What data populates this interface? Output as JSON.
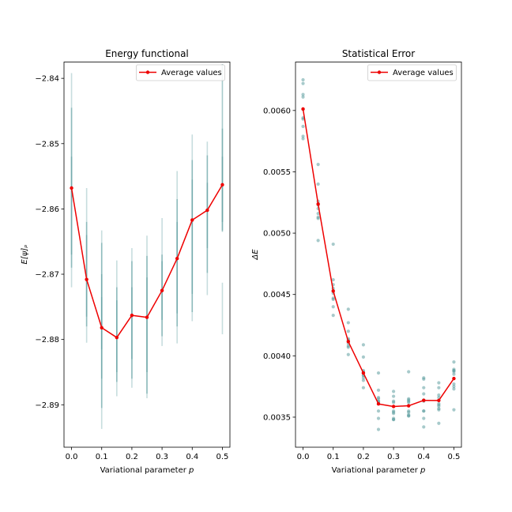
{
  "chart_data": [
    {
      "type": "errorbar-line",
      "title": "Energy functional",
      "xlabel": "Variational parameter p",
      "xlabel_parts": {
        "text": "Variational parameter ",
        "var": "p"
      },
      "ylabel": "E[ψ]ₚ",
      "xlim": [
        -0.025,
        0.525
      ],
      "ylim": [
        -2.8965,
        -2.8375
      ],
      "xticks": [
        0.0,
        0.1,
        0.2,
        0.3,
        0.4,
        0.5
      ],
      "xtick_labels": [
        "0.0",
        "0.1",
        "0.2",
        "0.3",
        "0.4",
        "0.5"
      ],
      "yticks": [
        -2.89,
        -2.88,
        -2.87,
        -2.86,
        -2.85,
        -2.84
      ],
      "ytick_labels": [
        "−2.89",
        "−2.88",
        "−2.87",
        "−2.86",
        "−2.85",
        "−2.84"
      ],
      "legend": {
        "label": "Average values",
        "position": "upper right"
      },
      "colors": {
        "line": "#ee0000",
        "errorbar": "#5f9ea0"
      },
      "series": [
        {
          "name": "Average values",
          "x": [
            0.0,
            0.05,
            0.1,
            0.15,
            0.2,
            0.25,
            0.3,
            0.35,
            0.4,
            0.45,
            0.5
          ],
          "y": [
            -2.8568,
            -2.8708,
            -2.8782,
            -2.8797,
            -2.8763,
            -2.8766,
            -2.8725,
            -2.8676,
            -2.8617,
            -2.8602,
            -2.8563
          ]
        }
      ],
      "errorbars": [
        {
          "x": 0.0,
          "ranges": [
            [
              -2.872,
              -2.8392
            ],
            [
              -2.867,
              -2.8445
            ],
            [
              -2.869,
              -2.852
            ]
          ]
        },
        {
          "x": 0.05,
          "ranges": [
            [
              -2.8805,
              -2.8568
            ],
            [
              -2.878,
              -2.862
            ],
            [
              -2.8765,
              -2.864
            ]
          ]
        },
        {
          "x": 0.1,
          "ranges": [
            [
              -2.8937,
              -2.8633
            ],
            [
              -2.8905,
              -2.8652
            ],
            [
              -2.886,
              -2.87
            ],
            [
              -2.8815,
              -2.8735
            ]
          ]
        },
        {
          "x": 0.15,
          "ranges": [
            [
              -2.8887,
              -2.8679
            ],
            [
              -2.8865,
              -2.872
            ],
            [
              -2.885,
              -2.874
            ]
          ]
        },
        {
          "x": 0.2,
          "ranges": [
            [
              -2.8874,
              -2.866
            ],
            [
              -2.886,
              -2.868
            ],
            [
              -2.883,
              -2.872
            ]
          ]
        },
        {
          "x": 0.25,
          "ranges": [
            [
              -2.889,
              -2.8641
            ],
            [
              -2.8883,
              -2.8672
            ],
            [
              -2.885,
              -2.8705
            ]
          ]
        },
        {
          "x": 0.3,
          "ranges": [
            [
              -2.881,
              -2.8614
            ],
            [
              -2.8795,
              -2.868
            ],
            [
              -2.877,
              -2.867
            ]
          ]
        },
        {
          "x": 0.35,
          "ranges": [
            [
              -2.8806,
              -2.8542
            ],
            [
              -2.878,
              -2.8585
            ],
            [
              -2.876,
              -2.862
            ]
          ]
        },
        {
          "x": 0.4,
          "ranges": [
            [
              -2.8772,
              -2.8486
            ],
            [
              -2.8758,
              -2.8525
            ],
            [
              -2.873,
              -2.8555
            ]
          ]
        },
        {
          "x": 0.45,
          "ranges": [
            [
              -2.8732,
              -2.8497
            ],
            [
              -2.8698,
              -2.8518
            ],
            [
              -2.866,
              -2.856
            ]
          ]
        },
        {
          "x": 0.5,
          "ranges": [
            [
              -2.8792,
              -2.8713
            ],
            [
              -2.8635,
              -2.8378
            ],
            [
              -2.8633,
              -2.8477
            ],
            [
              -2.862,
              -2.852
            ]
          ]
        }
      ]
    },
    {
      "type": "scatter-line",
      "title": "Statistical Error",
      "xlabel": "Variational parameter p",
      "xlabel_parts": {
        "text": "Variational parameter ",
        "var": "p"
      },
      "ylabel": "ΔE",
      "xlim": [
        -0.025,
        0.525
      ],
      "ylim": [
        0.003255,
        0.006395
      ],
      "xticks": [
        0.0,
        0.1,
        0.2,
        0.3,
        0.4,
        0.5
      ],
      "xtick_labels": [
        "0.0",
        "0.1",
        "0.2",
        "0.3",
        "0.4",
        "0.5"
      ],
      "yticks": [
        0.0035,
        0.004,
        0.0045,
        0.005,
        0.0055,
        0.006
      ],
      "ytick_labels": [
        "0.0035",
        "0.0040",
        "0.0045",
        "0.0050",
        "0.0055",
        "0.0060"
      ],
      "legend": {
        "label": "Average values",
        "position": "upper right"
      },
      "colors": {
        "line": "#ee0000",
        "scatter": "#5f9ea0"
      },
      "series": [
        {
          "name": "Average values",
          "x": [
            0.0,
            0.05,
            0.1,
            0.15,
            0.2,
            0.25,
            0.3,
            0.35,
            0.4,
            0.45,
            0.5
          ],
          "y": [
            0.006012,
            0.005237,
            0.004528,
            0.004116,
            0.00386,
            0.003608,
            0.003587,
            0.003593,
            0.003637,
            0.003636,
            0.003815
          ]
        }
      ],
      "scatter": [
        {
          "x": 0.0,
          "y": [
            0.00625,
            0.00622,
            0.00613,
            0.00611,
            0.00601,
            0.00594,
            0.00593,
            0.00587,
            0.00579,
            0.00577
          ]
        },
        {
          "x": 0.05,
          "y": [
            0.00556,
            0.0054,
            0.00526,
            0.00524,
            0.00523,
            0.0052,
            0.00516,
            0.00513,
            0.00512,
            0.00494
          ]
        },
        {
          "x": 0.1,
          "y": [
            0.00491,
            0.00462,
            0.00458,
            0.00455,
            0.00453,
            0.00451,
            0.00447,
            0.00446,
            0.0044,
            0.00433
          ]
        },
        {
          "x": 0.15,
          "y": [
            0.00438,
            0.00427,
            0.0042,
            0.00414,
            0.00413,
            0.00412,
            0.0041,
            0.00408,
            0.00407,
            0.00401
          ]
        },
        {
          "x": 0.2,
          "y": [
            0.00409,
            0.00399,
            0.00388,
            0.00387,
            0.00386,
            0.00384,
            0.00384,
            0.00382,
            0.0038,
            0.00374
          ]
        },
        {
          "x": 0.25,
          "y": [
            0.00386,
            0.00372,
            0.00366,
            0.00365,
            0.00363,
            0.00363,
            0.00362,
            0.00355,
            0.00349,
            0.0034
          ]
        },
        {
          "x": 0.3,
          "y": [
            0.00371,
            0.00367,
            0.00363,
            0.00362,
            0.00355,
            0.00354,
            0.00353,
            0.00349,
            0.00348,
            0.00348
          ]
        },
        {
          "x": 0.35,
          "y": [
            0.00387,
            0.00365,
            0.00364,
            0.00363,
            0.00362,
            0.00355,
            0.00354,
            0.00352,
            0.00351,
            0.00351
          ]
        },
        {
          "x": 0.4,
          "y": [
            0.00382,
            0.00381,
            0.00374,
            0.00369,
            0.00364,
            0.00363,
            0.00355,
            0.00355,
            0.00349,
            0.00342
          ]
        },
        {
          "x": 0.45,
          "y": [
            0.00378,
            0.00374,
            0.00368,
            0.00366,
            0.00361,
            0.0036,
            0.00359,
            0.00357,
            0.00356,
            0.00345
          ]
        },
        {
          "x": 0.5,
          "y": [
            0.00395,
            0.00389,
            0.00388,
            0.00388,
            0.00387,
            0.00385,
            0.00377,
            0.00375,
            0.00373,
            0.00356
          ]
        }
      ]
    }
  ]
}
